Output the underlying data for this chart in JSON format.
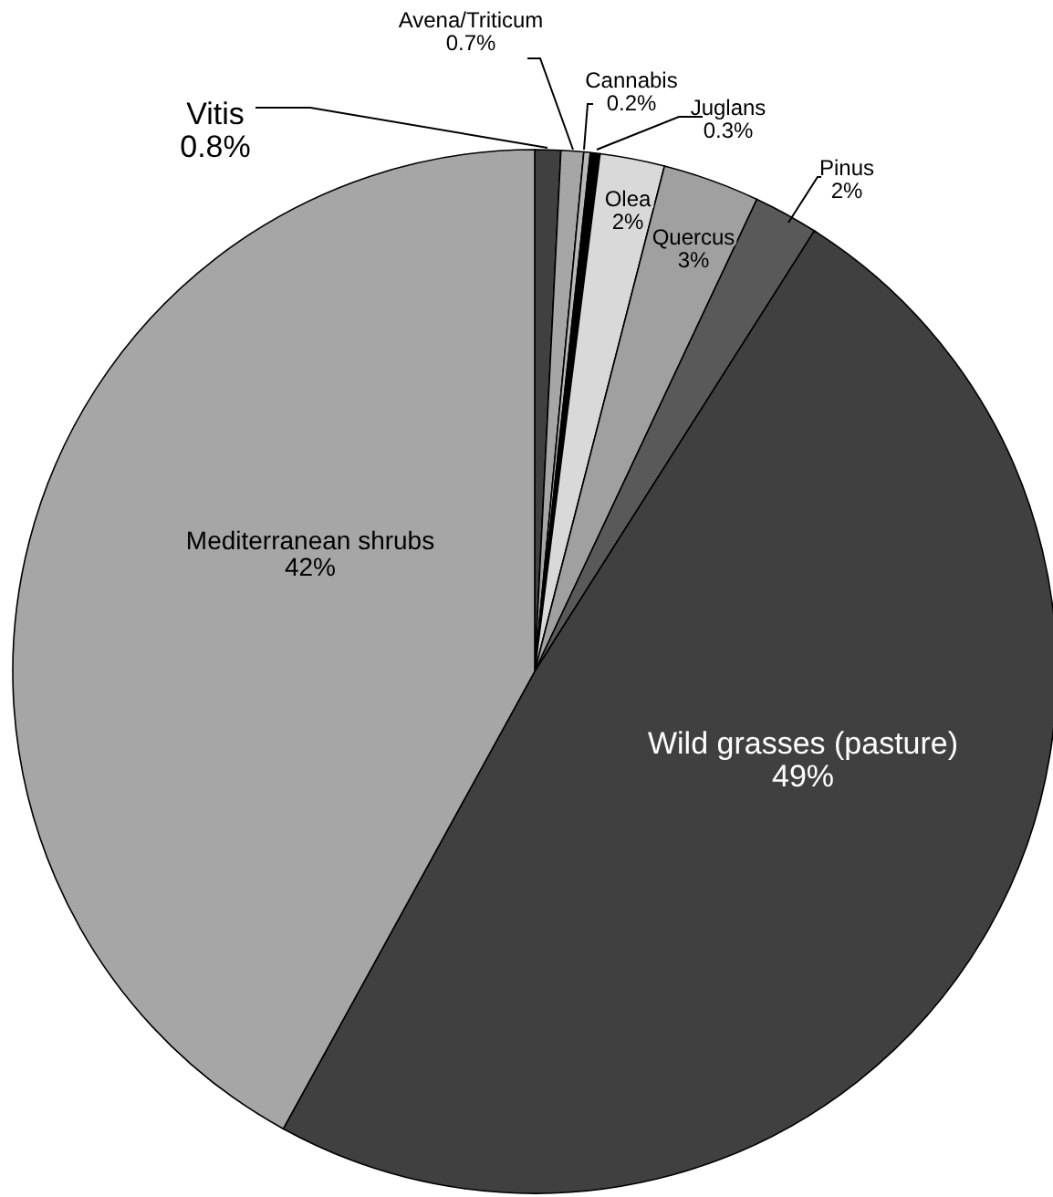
{
  "chart_data": {
    "type": "pie",
    "categories": [
      "Vitis",
      "Avena/Triticum",
      "Cannabis",
      "Juglans",
      "Olea",
      "Quercus",
      "Pinus",
      "Wild grasses (pasture)",
      "Mediterranean shrubs"
    ],
    "values": [
      0.8,
      0.7,
      0.2,
      0.3,
      2,
      3,
      2,
      49,
      42
    ],
    "value_labels": [
      "0.8%",
      "0.7%",
      "0.2%",
      "0.3%",
      "2%",
      "3%",
      "2%",
      "49%",
      "42%"
    ],
    "colors": [
      "#404040",
      "#a6a6a6",
      "#b8b8b8",
      "#000000",
      "#d9d9d9",
      "#a0a0a0",
      "#595959",
      "#404040",
      "#a6a6a6"
    ]
  }
}
